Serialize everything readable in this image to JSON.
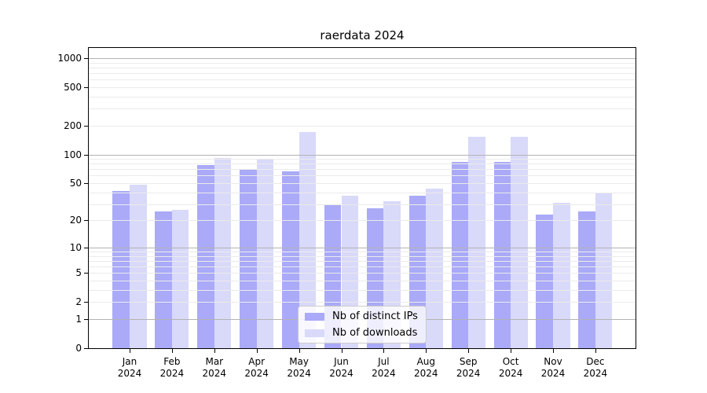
{
  "chart_data": {
    "type": "bar",
    "title": "raerdata 2024",
    "categories": [
      "Jan 2024",
      "Feb 2024",
      "Mar 2024",
      "Apr 2024",
      "May 2024",
      "Jun 2024",
      "Jul 2024",
      "Aug 2024",
      "Sep 2024",
      "Oct 2024",
      "Nov 2024",
      "Dec 2024"
    ],
    "series": [
      {
        "name": "Nb of distinct IPs",
        "key": "distinct-ips",
        "color": "#aaaaf8",
        "values": [
          41,
          25,
          77,
          71,
          66,
          29,
          27,
          37,
          84,
          84,
          23,
          25
        ]
      },
      {
        "name": "Nb of downloads",
        "key": "downloads",
        "color": "#d9d9fa",
        "values": [
          48,
          26,
          92,
          90,
          170,
          37,
          32,
          44,
          154,
          153,
          31,
          40
        ]
      }
    ],
    "xlabel": "",
    "ylabel": "",
    "yscale": "log1p",
    "yticks": [
      0,
      1,
      2,
      5,
      10,
      20,
      50,
      100,
      200,
      500,
      1000
    ],
    "ylim": [
      0,
      1275
    ],
    "grid": "horizontal",
    "legend_position": "inside-bottom-center"
  }
}
